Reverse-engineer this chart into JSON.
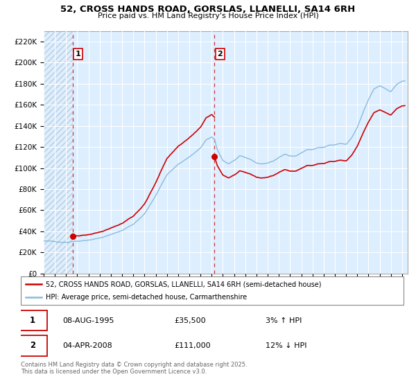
{
  "title_line1": "52, CROSS HANDS ROAD, GORSLAS, LLANELLI, SA14 6RH",
  "title_line2": "Price paid vs. HM Land Registry's House Price Index (HPI)",
  "ylim": [
    0,
    230000
  ],
  "yticks": [
    0,
    20000,
    40000,
    60000,
    80000,
    100000,
    120000,
    140000,
    160000,
    180000,
    200000,
    220000
  ],
  "ytick_labels": [
    "£0",
    "£20K",
    "£40K",
    "£60K",
    "£80K",
    "£100K",
    "£120K",
    "£140K",
    "£160K",
    "£180K",
    "£200K",
    "£220K"
  ],
  "property_color": "#cc0000",
  "hpi_color": "#88bbdd",
  "background_color": "#ffffff",
  "plot_bg_color": "#ddeeff",
  "grid_color": "#ffffff",
  "sale1_year": 1995.58,
  "sale1_price": 35500,
  "sale2_year": 2008.25,
  "sale2_price": 111000,
  "legend_line1": "52, CROSS HANDS ROAD, GORSLAS, LLANELLI, SA14 6RH (semi-detached house)",
  "legend_line2": "HPI: Average price, semi-detached house, Carmarthenshire",
  "table_row1": [
    "1",
    "08-AUG-1995",
    "£35,500",
    "3% ↑ HPI"
  ],
  "table_row2": [
    "2",
    "04-APR-2008",
    "£111,000",
    "12% ↓ HPI"
  ],
  "footer": "Contains HM Land Registry data © Crown copyright and database right 2025.\nThis data is licensed under the Open Government Licence v3.0.",
  "xlim_start": 1993.0,
  "xlim_end": 2025.5
}
